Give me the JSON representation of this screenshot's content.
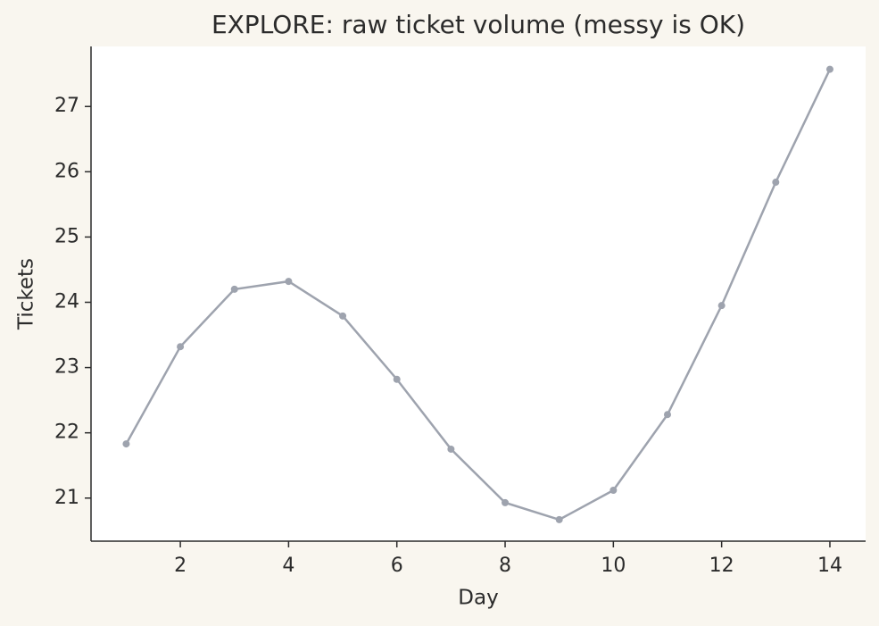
{
  "chart_data": {
    "type": "line",
    "title": "EXPLORE: raw ticket volume (messy is OK)",
    "x_label": "Day",
    "y_label": "Tickets",
    "x": [
      1,
      2,
      3,
      4,
      5,
      6,
      7,
      8,
      9,
      10,
      11,
      12,
      13,
      14
    ],
    "series": [
      {
        "color": "#9ea3ae",
        "values": [
          21.83,
          23.32,
          24.2,
          24.32,
          23.79,
          22.82,
          21.75,
          20.93,
          20.67,
          21.12,
          22.28,
          23.95,
          25.84,
          27.57
        ]
      }
    ],
    "xlim": [
      0.35,
      14.66
    ],
    "ylim": [
      20.34,
      27.92
    ],
    "xticks": [
      2,
      4,
      6,
      8,
      10,
      12,
      14
    ],
    "yticks": [
      21,
      22,
      23,
      24,
      25,
      26,
      27
    ]
  }
}
